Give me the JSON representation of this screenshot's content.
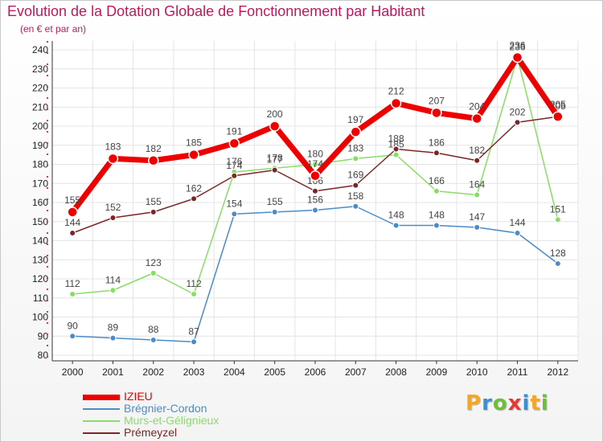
{
  "header": {
    "title": "Evolution de la Dotation Globale de Fonctionnement par Habitant",
    "subtitle": "(en € et par an)"
  },
  "brand": {
    "letters": [
      {
        "char": "P",
        "color": "#f5a623"
      },
      {
        "char": "r",
        "color": "#3a8fd8"
      },
      {
        "char": "o",
        "color": "#6cbf3a"
      },
      {
        "char": "x",
        "color": "#e53935"
      },
      {
        "char": "i",
        "color": "#3a8fd8"
      },
      {
        "char": "t",
        "color": "#f5a623"
      },
      {
        "char": "i",
        "color": "#6cbf3a"
      }
    ]
  },
  "chart_data": {
    "type": "line",
    "title": "Evolution de la Dotation Globale de Fonctionnement par Habitant",
    "subtitle": "(en € et par an)",
    "xlabel": "",
    "ylabel": "",
    "x": [
      "2000",
      "2001",
      "2002",
      "2003",
      "2004",
      "2005",
      "2006",
      "2007",
      "2008",
      "2009",
      "2010",
      "2011",
      "2012"
    ],
    "ylim": [
      80,
      240
    ],
    "yticks": [
      "80",
      "90",
      "100",
      "110",
      "120",
      "130",
      "140",
      "150",
      "160",
      "170",
      "180",
      "190",
      "200",
      "210",
      "220",
      "230",
      "240"
    ],
    "grid": true,
    "legend_position": "bottom-left",
    "series": [
      {
        "name": "IZIEU",
        "color": "#ee0000",
        "emphasis": true,
        "values": [
          155,
          183,
          182,
          185,
          191,
          200,
          174,
          197,
          212,
          207,
          204,
          236,
          205
        ]
      },
      {
        "name": "Brégnier-Cordon",
        "color": "#4a8cc8",
        "values": [
          90,
          89,
          88,
          87,
          154,
          155,
          156,
          158,
          148,
          148,
          147,
          144,
          128
        ]
      },
      {
        "name": "Murs-et-Gélignieux",
        "color": "#88dd66",
        "values": [
          112,
          114,
          123,
          112,
          176,
          178,
          180,
          183,
          185,
          166,
          164,
          236,
          151
        ]
      },
      {
        "name": "Prémeyzel",
        "color": "#7a2626",
        "values": [
          144,
          152,
          155,
          162,
          174,
          177,
          166,
          169,
          188,
          186,
          182,
          202,
          205
        ]
      }
    ]
  }
}
